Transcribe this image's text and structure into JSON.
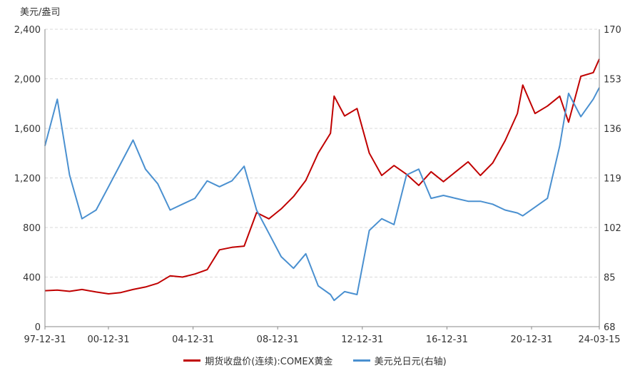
{
  "chart_data": {
    "type": "line",
    "ylabel_left": "美元/盎司",
    "y_left": {
      "lim": [
        0,
        2400
      ],
      "ticks": [
        "0",
        "400",
        "800",
        "1,200",
        "1,600",
        "2,000",
        "2,400"
      ]
    },
    "y_right": {
      "lim": [
        68,
        170
      ],
      "ticks": [
        "68",
        "85",
        "102",
        "119",
        "136",
        "153",
        "170"
      ]
    },
    "x_ticks": [
      "97-12-31",
      "00-12-31",
      "04-12-31",
      "08-12-31",
      "12-12-31",
      "16-12-31",
      "20-12-31",
      "24-03-15"
    ],
    "x": [
      "1997-12-31",
      "1998-08-01",
      "1999-03-01",
      "1999-10-01",
      "2000-06-01",
      "2001-01-01",
      "2001-08-01",
      "2002-03-01",
      "2002-10-01",
      "2003-05-01",
      "2003-12-01",
      "2004-07-01",
      "2005-02-01",
      "2005-09-01",
      "2006-04-01",
      "2006-11-01",
      "2007-06-01",
      "2008-01-01",
      "2008-08-01",
      "2009-03-01",
      "2009-10-01",
      "2010-05-01",
      "2010-12-01",
      "2011-07-01",
      "2011-09-01",
      "2012-03-01",
      "2012-10-01",
      "2013-05-01",
      "2013-12-01",
      "2014-07-01",
      "2015-02-01",
      "2015-09-01",
      "2016-04-01",
      "2016-11-01",
      "2017-06-01",
      "2018-01-01",
      "2018-08-01",
      "2019-03-01",
      "2019-10-01",
      "2020-05-01",
      "2020-08-01",
      "2021-03-01",
      "2021-10-01",
      "2022-05-01",
      "2022-10-01",
      "2023-05-01",
      "2023-12-01",
      "2024-03-15"
    ],
    "grid": true,
    "legend_position": "bottom",
    "series": [
      {
        "name": "期货收盘价(连续):COMEX黄金",
        "axis": "left",
        "color": "#c00000",
        "values": [
          290,
          295,
          285,
          300,
          280,
          265,
          275,
          300,
          320,
          350,
          410,
          400,
          425,
          460,
          620,
          640,
          650,
          920,
          870,
          950,
          1050,
          1180,
          1400,
          1560,
          1860,
          1700,
          1760,
          1400,
          1220,
          1300,
          1230,
          1140,
          1250,
          1170,
          1250,
          1330,
          1220,
          1320,
          1500,
          1720,
          1950,
          1720,
          1780,
          1860,
          1650,
          2020,
          2050,
          2160
        ]
      },
      {
        "name": "美元兑日元(右轴)",
        "axis": "right",
        "color": "#4a90d0",
        "values": [
          130,
          146,
          120,
          105,
          108,
          116,
          124,
          132,
          122,
          117,
          108,
          110,
          112,
          118,
          116,
          118,
          123,
          108,
          100,
          92,
          88,
          93,
          82,
          79,
          77,
          80,
          79,
          101,
          105,
          103,
          120,
          122,
          112,
          113,
          112,
          111,
          111,
          110,
          108,
          107,
          106,
          109,
          112,
          130,
          148,
          140,
          146,
          150
        ]
      }
    ]
  }
}
